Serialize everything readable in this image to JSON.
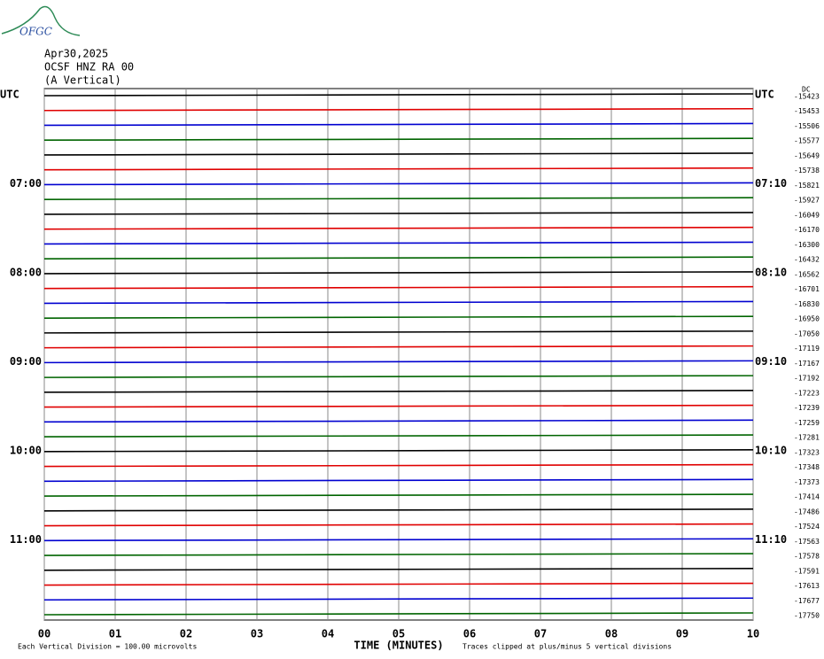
{
  "header": {
    "logo": "OFGC",
    "date": "Apr30,2025",
    "station": "OCSF HNZ RA 00",
    "component": "(A Vertical)"
  },
  "chart_data": {
    "type": "helicorder",
    "x_label": "TIME (MINUTES)",
    "scale_note": "Each Vertical Division =  100.00 microvolts",
    "clip_note": "Traces clipped at plus/minus 5 vertical divisions",
    "dc_label": "DC",
    "colors": [
      "#000000",
      "#e00000",
      "#0000d0",
      "#006400"
    ],
    "xlim": [
      0,
      10
    ],
    "xticks": [
      {
        "value": 0,
        "label": "00"
      },
      {
        "value": 1,
        "label": "01"
      },
      {
        "value": 2,
        "label": "02"
      },
      {
        "value": 3,
        "label": "03"
      },
      {
        "value": 4,
        "label": "04"
      },
      {
        "value": 5,
        "label": "05"
      },
      {
        "value": 6,
        "label": "06"
      },
      {
        "value": 7,
        "label": "07"
      },
      {
        "value": 8,
        "label": "08"
      },
      {
        "value": 9,
        "label": "09"
      },
      {
        "value": 10,
        "label": "10"
      }
    ],
    "left_labels": [
      "UTC",
      null,
      null,
      null,
      null,
      null,
      "07:00",
      null,
      null,
      null,
      null,
      null,
      "08:00",
      null,
      null,
      null,
      null,
      null,
      "09:00",
      null,
      null,
      null,
      null,
      null,
      "10:00",
      null,
      null,
      null,
      null,
      null,
      "11:00",
      null,
      null,
      null,
      null,
      null
    ],
    "right_labels": [
      "UTC",
      null,
      null,
      null,
      null,
      null,
      "07:10",
      null,
      null,
      null,
      null,
      null,
      "08:10",
      null,
      null,
      null,
      null,
      null,
      "09:10",
      null,
      null,
      null,
      null,
      null,
      "10:10",
      null,
      null,
      null,
      null,
      null,
      "11:10",
      null,
      null,
      null,
      null,
      null
    ],
    "offsets": [
      -15423,
      -15453,
      -15506,
      -15577,
      -15649,
      -15738,
      -15821,
      -15927,
      -16049,
      -16170,
      -16300,
      -16432,
      -16562,
      -16701,
      -16830,
      -16950,
      -17050,
      -17119,
      -17167,
      -17192,
      -17223,
      -17239,
      -17259,
      -17281,
      -17323,
      -17348,
      -17373,
      -17414,
      -17486,
      -17524,
      -17563,
      -17578,
      -17591,
      -17613,
      -17677,
      -17750
    ]
  }
}
